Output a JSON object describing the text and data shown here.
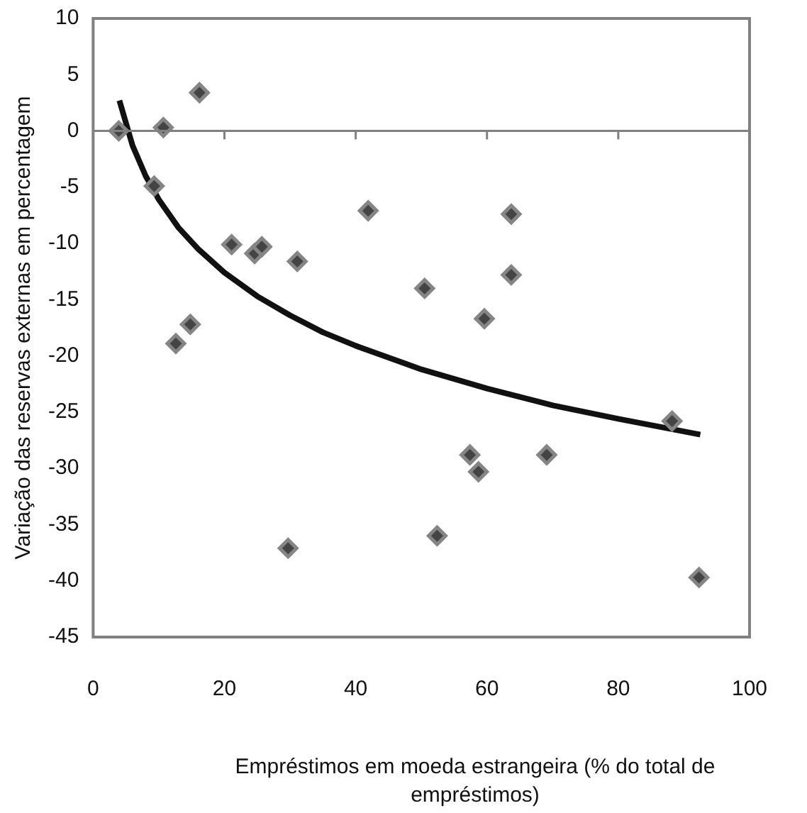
{
  "chart_data": {
    "type": "scatter",
    "xlabel": "Empréstimos em moeda estrangeira (% do total de empréstimos)",
    "ylabel": "Variação das reservas externas em percentagem",
    "xlim": [
      0,
      100
    ],
    "xticks": [
      0,
      20,
      40,
      60,
      80,
      100
    ],
    "ylim": [
      -45,
      10
    ],
    "yticks": [
      10,
      5,
      0,
      -5,
      -10,
      -15,
      -20,
      -25,
      -30,
      -35,
      -40,
      -45
    ],
    "grid": false,
    "legend": false,
    "marker": "diamond",
    "ref_lines": [
      {
        "axis": "y",
        "value": 0,
        "color": "#808080"
      }
    ],
    "series": [
      {
        "type": "scatter",
        "color": "#444444",
        "x": [
          3.9,
          10.7,
          16.2,
          9.3,
          21.1,
          24.6,
          25.7,
          31.1,
          41.9,
          14.8,
          12.6,
          29.7,
          63.7,
          63.7,
          50.5,
          59.6,
          57.4,
          58.7,
          52.4,
          69.1,
          88.2,
          92.3
        ],
        "values": [
          0,
          0.3,
          3.4,
          -4.9,
          -10.1,
          -10.9,
          -10.3,
          -11.6,
          -7.1,
          -17.2,
          -18.9,
          -37.1,
          -7.4,
          -12.8,
          -14.0,
          -16.7,
          -28.8,
          -30.3,
          -36.0,
          -28.8,
          -25.8,
          -39.7
        ]
      },
      {
        "type": "line",
        "color": "#111111",
        "marker": "none",
        "x": [
          4,
          6,
          8,
          10,
          13,
          16,
          20,
          25,
          30,
          35,
          40,
          50,
          60,
          70,
          80,
          92.5
        ],
        "values": [
          2.7,
          -1.3,
          -4,
          -6.1,
          -8.6,
          -10.5,
          -12.6,
          -14.7,
          -16.4,
          -17.9,
          -19.1,
          -21.2,
          -22.9,
          -24.4,
          -25.6,
          -27.0
        ]
      }
    ]
  }
}
